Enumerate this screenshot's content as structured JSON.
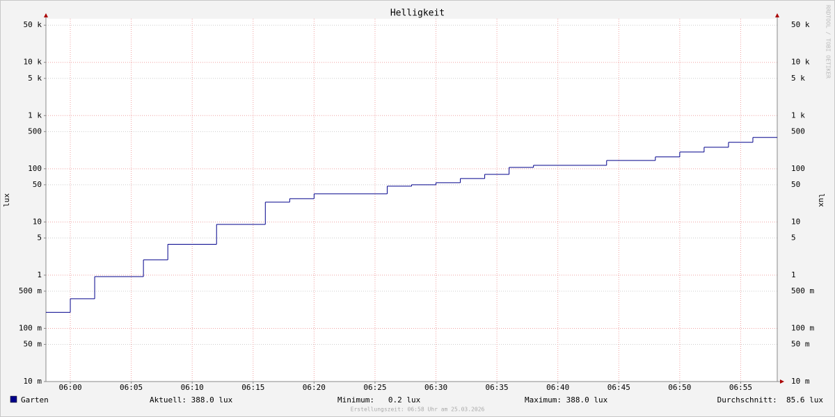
{
  "chart_data": {
    "type": "line",
    "step": true,
    "title": "Helligkeit",
    "y_label": "lux",
    "y2_label": "lux",
    "watermark": "RRDTOOL / TOBI OETIKER",
    "x": [
      "05:58",
      "06:00",
      "06:02",
      "06:06",
      "06:08",
      "06:12",
      "06:16",
      "06:18",
      "06:20",
      "06:26",
      "06:28",
      "06:30",
      "06:32",
      "06:34",
      "06:36",
      "06:38",
      "06:44",
      "06:48",
      "06:50",
      "06:52",
      "06:54",
      "06:56"
    ],
    "series": [
      {
        "name": "Garten",
        "color": "#00008b",
        "values": [
          0.2,
          0.36,
          0.94,
          1.94,
          3.8,
          9,
          23.6,
          27.4,
          33.8,
          47,
          50,
          54.8,
          65.6,
          78.6,
          106,
          116,
          143,
          167,
          206,
          254,
          314,
          388
        ]
      }
    ],
    "xlim": [
      "05:58",
      "06:58"
    ],
    "xticks": [
      "06:00",
      "06:05",
      "06:10",
      "06:15",
      "06:20",
      "06:25",
      "06:30",
      "06:35",
      "06:40",
      "06:45",
      "06:50",
      "06:55"
    ],
    "ylim": [
      0.01,
      66000
    ],
    "log_scale": true,
    "grid": true,
    "yticks": [
      {
        "value": 0.01,
        "label": "10 m"
      },
      {
        "value": 0.05,
        "label": "50 m"
      },
      {
        "value": 0.1,
        "label": "100 m"
      },
      {
        "value": 0.5,
        "label": "500 m"
      },
      1,
      5,
      10,
      50,
      100,
      500,
      {
        "value": 1000,
        "label": "1 k"
      },
      {
        "value": 5000,
        "label": "5 k"
      },
      {
        "value": 10000,
        "label": "10 k"
      },
      {
        "value": 50000,
        "label": "50 k"
      }
    ],
    "stats": [
      "Aktuell: 388.0 lux",
      "Minimum:   0.2 lux",
      "Maximum: 388.0 lux",
      "Durchschnitt:  85.6 lux"
    ],
    "footer": "Erstellungszeit: 06:58 Uhr am 25.03.2026"
  }
}
